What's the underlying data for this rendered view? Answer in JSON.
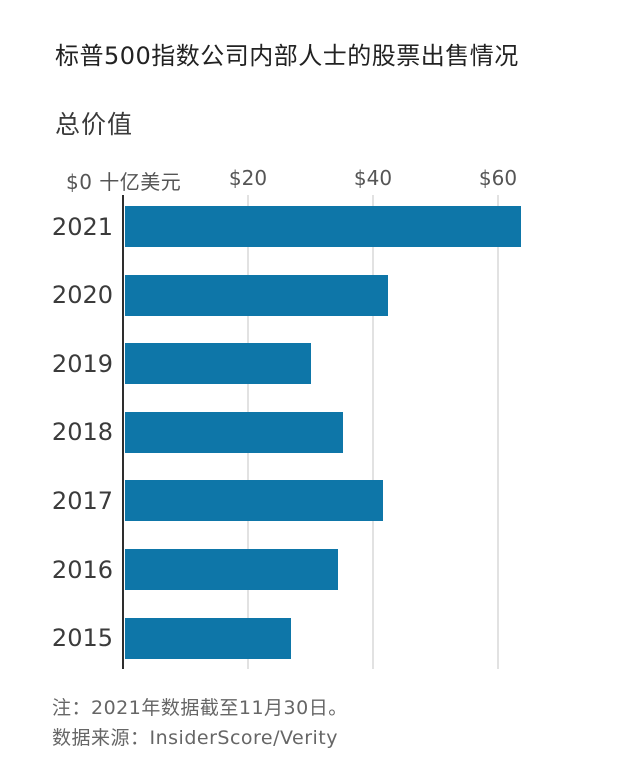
{
  "header": {
    "title": "标普500指数公司内部人士的股票出售情况",
    "subtitle": "总价值"
  },
  "chart_data": {
    "type": "bar",
    "orientation": "horizontal",
    "title": "标普500指数公司内部人士的股票出售情况",
    "subtitle": "总价值",
    "categories": [
      "2021",
      "2020",
      "2019",
      "2018",
      "2017",
      "2016",
      "2015"
    ],
    "values": [
      63.4,
      42.1,
      29.8,
      34.9,
      41.3,
      34.1,
      26.6
    ],
    "unit": "十亿美元",
    "x_ticks": [
      {
        "label": "$0 十亿美元",
        "value": 0
      },
      {
        "label": "$20",
        "value": 20
      },
      {
        "label": "$40",
        "value": 40
      },
      {
        "label": "$60",
        "value": 60
      }
    ],
    "xlim": [
      0,
      66
    ],
    "grid": true,
    "legend": "none",
    "bar_color": "#0e76a8",
    "gridline_color": "#e2e2e2",
    "axis_color": "#2e2e2e"
  },
  "footer": {
    "note": "注：2021年数据截至11月30日。",
    "source": "数据来源：InsiderScore/Verity"
  }
}
